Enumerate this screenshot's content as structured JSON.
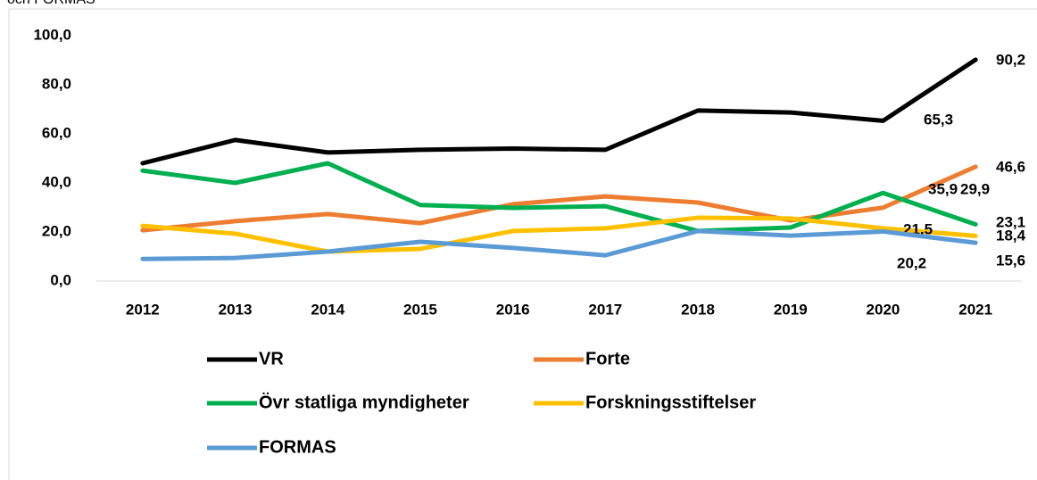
{
  "chart_data": {
    "type": "line",
    "title": "och FORMAS",
    "categories": [
      "2012",
      "2013",
      "2014",
      "2015",
      "2016",
      "2017",
      "2018",
      "2019",
      "2020",
      "2021"
    ],
    "ylim": [
      0,
      100
    ],
    "yticks": [
      {
        "value": 0,
        "label": "0,0"
      },
      {
        "value": 20,
        "label": "20,0"
      },
      {
        "value": 40,
        "label": "40,0"
      },
      {
        "value": 60,
        "label": "60,0"
      },
      {
        "value": 80,
        "label": "80,0"
      },
      {
        "value": 100,
        "label": "100,0"
      }
    ],
    "series": [
      {
        "name": "VR",
        "color": "#000000",
        "values": [
          48,
          57.5,
          52.4,
          53.5,
          54,
          53.5,
          69.5,
          68.7,
          65.3,
          90.2
        ],
        "value_labels": [
          null,
          null,
          null,
          null,
          null,
          null,
          null,
          null,
          "65,3",
          "90,2"
        ]
      },
      {
        "name": "Forte",
        "color": "#ed7d31",
        "values": [
          20.7,
          24.4,
          27.3,
          23.6,
          31.3,
          34.5,
          32,
          24.7,
          29.9,
          46.6
        ],
        "value_labels": [
          null,
          null,
          null,
          null,
          null,
          null,
          null,
          null,
          "29,9",
          "46,6"
        ]
      },
      {
        "name": "Övr statliga myndigheter",
        "color": "#00b050",
        "values": [
          45,
          40,
          48,
          31,
          29.8,
          30.5,
          20.4,
          21.8,
          35.9,
          23.1
        ],
        "value_labels": [
          null,
          null,
          null,
          null,
          null,
          null,
          null,
          null,
          "35,9",
          "23,1"
        ]
      },
      {
        "name": "Forskningsstiftelser",
        "color": "#ffc000",
        "values": [
          22.5,
          19.3,
          12,
          13.1,
          20.4,
          21.5,
          25.8,
          25.5,
          21.5,
          18.4
        ],
        "value_labels": [
          null,
          null,
          null,
          null,
          null,
          null,
          null,
          null,
          "21,5",
          "18,4"
        ]
      },
      {
        "name": "FORMAS",
        "color": "#5b9bd5",
        "values": [
          9,
          9.4,
          12,
          16,
          13.5,
          10.5,
          20.4,
          18.5,
          20.2,
          15.6
        ],
        "value_labels": [
          null,
          null,
          null,
          null,
          null,
          null,
          null,
          null,
          "20,2",
          "15,6"
        ]
      }
    ]
  }
}
